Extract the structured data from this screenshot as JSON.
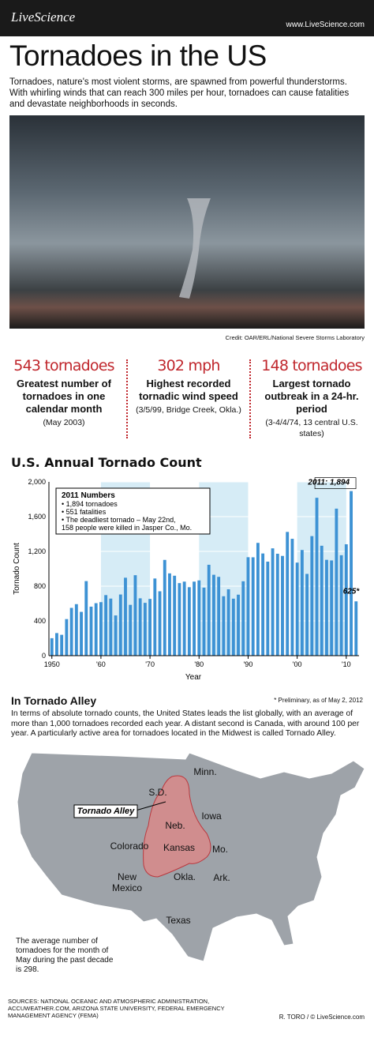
{
  "header": {
    "brand": "LiveScience",
    "url": "www.LiveScience.com"
  },
  "title": "Tornadoes in the US",
  "intro": "Tornadoes, nature's most violent storms, are spawned from powerful thunderstorms. With whirling winds that can reach 300 miles per hour, tornadoes can cause fatalities and devastate neighborhoods in seconds.",
  "photo_credit": "Credit: OAR/ERL/National Severe Storms Laboratory",
  "stats": [
    {
      "headline": "543 tornadoes",
      "text": "Greatest number of tornadoes in one calendar month",
      "note": "(May 2003)"
    },
    {
      "headline": "302 mph",
      "text": "Highest recorded tornadic wind speed",
      "note": "(3/5/99, Bridge Creek, Okla.)"
    },
    {
      "headline": "148 tornadoes",
      "text": "Largest tornado outbreak in a 24-hr. period",
      "note": "(3-4/4/74, 13 central U.S. states)"
    }
  ],
  "chart_data": {
    "type": "bar",
    "title": "U.S. Annual Tornado Count",
    "x": [
      1950,
      1951,
      1952,
      1953,
      1954,
      1955,
      1956,
      1957,
      1958,
      1959,
      1960,
      1961,
      1962,
      1963,
      1964,
      1965,
      1966,
      1967,
      1968,
      1969,
      1970,
      1971,
      1972,
      1973,
      1974,
      1975,
      1976,
      1977,
      1978,
      1979,
      1980,
      1981,
      1982,
      1983,
      1984,
      1985,
      1986,
      1987,
      1988,
      1989,
      1990,
      1991,
      1992,
      1993,
      1994,
      1995,
      1996,
      1997,
      1998,
      1999,
      2000,
      2001,
      2002,
      2003,
      2004,
      2005,
      2006,
      2007,
      2008,
      2009,
      2010,
      2011,
      2012
    ],
    "values": [
      201,
      260,
      240,
      421,
      550,
      593,
      504,
      858,
      564,
      604,
      616,
      697,
      657,
      463,
      704,
      897,
      585,
      926,
      660,
      608,
      653,
      888,
      741,
      1102,
      947,
      920,
      835,
      852,
      788,
      852,
      866,
      783,
      1046,
      931,
      907,
      684,
      764,
      656,
      702,
      856,
      1133,
      1132,
      1298,
      1176,
      1082,
      1235,
      1173,
      1148,
      1424,
      1345,
      1071,
      1216,
      941,
      1376,
      1817,
      1265,
      1103,
      1096,
      1692,
      1156,
      1282,
      1894,
      625
    ],
    "color": "#3d92d4",
    "xlim": [
      1949.4,
      2012.6
    ],
    "xticks": [
      {
        "value": 1950,
        "label": "1950"
      },
      {
        "value": 1960,
        "label": "'60"
      },
      {
        "value": 1970,
        "label": "'70"
      },
      {
        "value": 1980,
        "label": "'80"
      },
      {
        "value": 1990,
        "label": "'90"
      },
      {
        "value": 2000,
        "label": "'00"
      },
      {
        "value": 2010,
        "label": "'10"
      }
    ],
    "ylim": [
      0,
      2000
    ],
    "yticks": [
      0,
      400,
      800,
      {
        "value": 1200,
        "label": "1,200"
      },
      {
        "value": 1600,
        "label": "1,600"
      },
      {
        "value": 2000,
        "label": "2,000"
      }
    ],
    "xlabel": "Year",
    "ylabel": "Tornado Count",
    "callout": {
      "title": "2011 Numbers",
      "items": [
        "1,894 tornadoes",
        "551 fatalities",
        "The deadliest tornado – May 22nd, 158 people were killed in Jasper Co., Mo."
      ]
    },
    "annotations": [
      "2011: 1,894",
      "625*"
    ],
    "footnote": "* Preliminary, as of May 2, 2012"
  },
  "alley": {
    "title": "In Tornado Alley",
    "text": "In terms of absolute tornado counts, the United States leads the list globally, with an average of more than 1,000 tornadoes recorded each year. A distant second is Canada, with around 100 per year. A particularly active area for tornadoes located in the Midwest is called Tornado Alley.",
    "callout": "Tornado Alley",
    "states": [
      "Minn.",
      "S.D.",
      "Iowa",
      "Neb.",
      "Colorado",
      "Kansas",
      "Mo.",
      "New Mexico",
      "Okla.",
      "Ark.",
      "Texas"
    ],
    "note": "The average number of tornadoes for the month of May during the past decade is 298."
  },
  "footer": {
    "sources": "SOURCES: NATIONAL OCEANIC AND ATMOSPHERIC ADMINISTRATION, ACCUWEATHER.COM, ARIZONA STATE UNIVERSITY, FEDERAL EMERGENCY MANAGEMENT AGENCY (FEMA)",
    "credit": "R. TORO / © LiveScience.com"
  }
}
